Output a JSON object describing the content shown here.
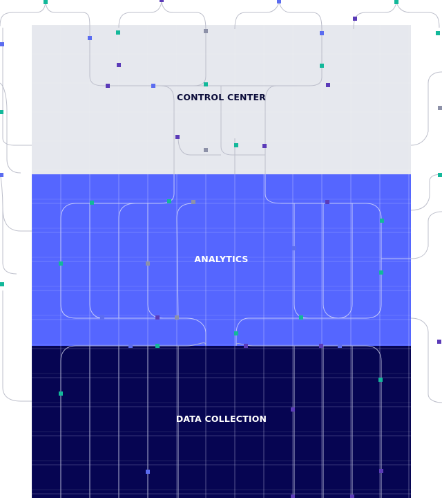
{
  "layers": [
    {
      "id": "control",
      "label": "CONTROL CENTER",
      "fill": "#e6e8ee"
    },
    {
      "id": "analytics",
      "label": "ANALYTICS",
      "fill": "#5566ff"
    },
    {
      "id": "collection",
      "label": "DATA COLLECTION",
      "fill": "#060552"
    }
  ],
  "colors": {
    "background": "#ffffff",
    "line_light": "#b9bcc8",
    "line_on_blue": "#c8cdfa",
    "line_on_navy": "#b5b8d6",
    "node_teal": "#13b89a",
    "node_blue": "#5b6cf0",
    "node_purple": "#5b3bb8",
    "node_gray": "#8d91a8"
  }
}
